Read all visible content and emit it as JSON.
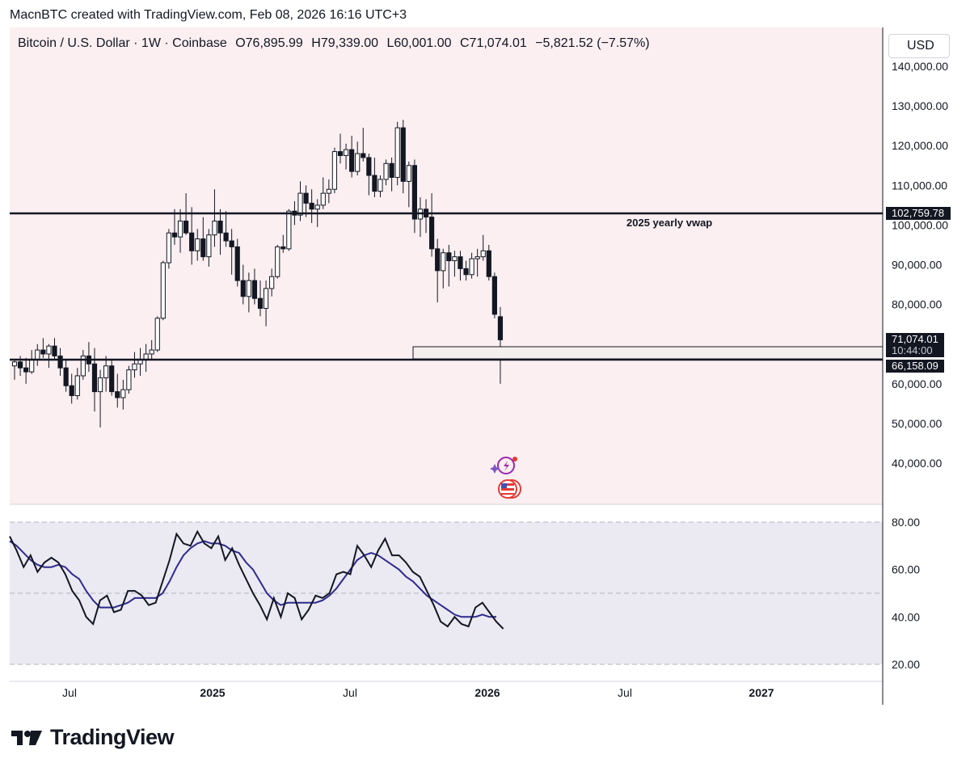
{
  "header": {
    "text": "MacnBTC created with TradingView.com, Feb 08, 2026 16:16 UTC+3"
  },
  "legend": {
    "symbol": "Bitcoin / U.S. Dollar · 1W · Coinbase",
    "open": "O76,895.99",
    "high": "H79,339.00",
    "low": "L60,001.00",
    "close": "C71,074.01",
    "change": "−5,821.52 (−7.57%)"
  },
  "currency_button": "USD",
  "footer": {
    "brand": "TradingView"
  },
  "price_axis": {
    "ticks": [
      "140,000.00",
      "130,000.00",
      "120,000.00",
      "110,000.00",
      "100,000.00",
      "90,000.00",
      "80,000.00",
      "70,000.00",
      "60,000.00",
      "50,000.00",
      "40,000.00"
    ]
  },
  "rsi_axis": {
    "ticks": [
      "80.00",
      "60.00",
      "40.00",
      "20.00"
    ]
  },
  "time_axis": {
    "labels": [
      "Jul",
      "2025",
      "Jul",
      "2026",
      "Jul",
      "2027"
    ]
  },
  "annotations": {
    "vwap_label": "2025 yearly vwap",
    "vwap_price": "102,759.78",
    "support_price": "66,158.09",
    "last_price": "71,074.01",
    "countdown": "10:44:00"
  },
  "colors": {
    "price_bg": "#fbeff1",
    "rsi_bg": "#ebe9f2",
    "rsi_line": "#131722",
    "rsi_ma": "#2e2a8f",
    "candle_up": "#ffffff",
    "candle_down": "#131722"
  },
  "chart_data": {
    "type": "candlestick",
    "title": "Bitcoin / U.S. Dollar · 1W · Coinbase",
    "ylim": [
      30000,
      145000
    ],
    "levels": [
      102759.78,
      66158.09
    ],
    "candles": [
      [
        64500,
        66000,
        61000,
        65500
      ],
      [
        65500,
        67000,
        62000,
        64000
      ],
      [
        64000,
        66500,
        60000,
        63000
      ],
      [
        63000,
        68500,
        62500,
        66000
      ],
      [
        66000,
        70000,
        64500,
        68500
      ],
      [
        68500,
        71500,
        66500,
        67500
      ],
      [
        67500,
        70000,
        64000,
        69500
      ],
      [
        69500,
        71500,
        66000,
        67000
      ],
      [
        67000,
        69000,
        62000,
        64000
      ],
      [
        64000,
        66000,
        58000,
        59500
      ],
      [
        59500,
        62500,
        55000,
        57000
      ],
      [
        57000,
        64000,
        56000,
        62000
      ],
      [
        62000,
        68500,
        61000,
        67000
      ],
      [
        67000,
        70500,
        63000,
        65000
      ],
      [
        65000,
        69000,
        53000,
        58000
      ],
      [
        58000,
        63500,
        49000,
        61500
      ],
      [
        61500,
        67000,
        58000,
        64500
      ],
      [
        64500,
        66000,
        57000,
        58000
      ],
      [
        58000,
        62500,
        54000,
        56500
      ],
      [
        56500,
        61000,
        53500,
        58500
      ],
      [
        58500,
        64500,
        57500,
        63500
      ],
      [
        63500,
        68000,
        61500,
        65000
      ],
      [
        65000,
        69000,
        62000,
        66000
      ],
      [
        66000,
        70000,
        63000,
        67500
      ],
      [
        67500,
        71000,
        66000,
        68500
      ],
      [
        68500,
        77000,
        68000,
        76500
      ],
      [
        76500,
        91000,
        76000,
        90500
      ],
      [
        90500,
        99000,
        89000,
        98000
      ],
      [
        98000,
        104000,
        95000,
        97000
      ],
      [
        97000,
        104000,
        93000,
        101000
      ],
      [
        101000,
        108000,
        97500,
        98000
      ],
      [
        98000,
        104500,
        90000,
        93500
      ],
      [
        93500,
        99000,
        91000,
        96500
      ],
      [
        96500,
        102000,
        91000,
        92000
      ],
      [
        92000,
        99000,
        89500,
        97500
      ],
      [
        97500,
        109000,
        94500,
        101000
      ],
      [
        101000,
        104000,
        92500,
        98000
      ],
      [
        98000,
        103500,
        94500,
        96000
      ],
      [
        96000,
        99000,
        87500,
        94500
      ],
      [
        94500,
        96500,
        84500,
        86000
      ],
      [
        86000,
        90000,
        80000,
        82000
      ],
      [
        82000,
        88000,
        78000,
        86000
      ],
      [
        86000,
        89000,
        80000,
        81500
      ],
      [
        81500,
        86000,
        77000,
        79000
      ],
      [
        79000,
        86000,
        74500,
        84000
      ],
      [
        84000,
        89000,
        82000,
        87000
      ],
      [
        87000,
        95000,
        86500,
        94500
      ],
      [
        94500,
        97500,
        93000,
        94000
      ],
      [
        94000,
        104000,
        93500,
        103500
      ],
      [
        103500,
        106000,
        100000,
        102500
      ],
      [
        102500,
        111000,
        101000,
        108000
      ],
      [
        108000,
        110000,
        102000,
        105500
      ],
      [
        105500,
        109000,
        100500,
        104000
      ],
      [
        104000,
        106500,
        99500,
        105000
      ],
      [
        105000,
        112000,
        104000,
        108000
      ],
      [
        108000,
        111500,
        105500,
        109000
      ],
      [
        109000,
        119500,
        108000,
        118500
      ],
      [
        118500,
        123000,
        115500,
        117500
      ],
      [
        117500,
        120500,
        114000,
        119000
      ],
      [
        119000,
        122500,
        112000,
        113500
      ],
      [
        113500,
        121000,
        112500,
        118000
      ],
      [
        118000,
        124500,
        116000,
        117000
      ],
      [
        117000,
        118000,
        107500,
        112500
      ],
      [
        112500,
        117000,
        107000,
        108500
      ],
      [
        108500,
        112500,
        107000,
        111500
      ],
      [
        111500,
        116500,
        110000,
        115500
      ],
      [
        115500,
        117000,
        108500,
        112000
      ],
      [
        112000,
        126000,
        110000,
        124500
      ],
      [
        124500,
        126500,
        108000,
        111000
      ],
      [
        111000,
        116000,
        104500,
        115000
      ],
      [
        115000,
        116500,
        98000,
        101500
      ],
      [
        101500,
        107000,
        97000,
        104000
      ],
      [
        104000,
        106500,
        98000,
        102000
      ],
      [
        102000,
        108000,
        92000,
        94000
      ],
      [
        94000,
        96500,
        80500,
        88500
      ],
      [
        88500,
        94000,
        84000,
        93000
      ],
      [
        93000,
        95000,
        84500,
        91000
      ],
      [
        91000,
        93500,
        87000,
        92000
      ],
      [
        92000,
        93500,
        86000,
        89000
      ],
      [
        89000,
        91000,
        86000,
        87500
      ],
      [
        87500,
        93000,
        86500,
        91500
      ],
      [
        91500,
        94000,
        87000,
        92000
      ],
      [
        92000,
        97500,
        91000,
        93500
      ],
      [
        93500,
        95000,
        86000,
        87000
      ],
      [
        87000,
        88000,
        76500,
        77500
      ],
      [
        76895.99,
        79339,
        60001,
        71074.01
      ]
    ],
    "rsi": [
      74,
      68,
      61,
      66,
      59,
      63,
      65,
      63,
      58,
      51,
      47,
      40,
      37,
      47,
      49,
      42,
      43,
      51,
      51,
      49,
      45,
      46,
      55,
      64,
      75,
      71,
      70,
      76,
      71,
      69,
      74,
      64,
      69,
      62,
      56,
      50,
      45,
      39,
      48,
      40,
      50,
      48,
      39,
      43,
      49,
      48,
      50,
      58,
      59,
      58,
      70,
      66,
      61,
      68,
      73,
      66,
      66,
      63,
      59,
      57,
      51,
      45,
      38,
      36,
      40,
      37,
      36,
      44,
      46,
      42,
      38,
      35
    ],
    "rsi_ma": [
      72,
      70,
      67,
      64,
      62,
      61,
      61,
      62,
      61,
      58,
      56,
      51,
      47,
      44,
      44,
      44,
      45,
      46,
      48,
      48,
      48,
      48,
      50,
      55,
      61,
      66,
      69,
      71,
      72,
      71,
      71,
      70,
      68,
      67,
      63,
      60,
      55,
      50,
      47,
      45,
      46,
      46,
      46,
      46,
      46,
      47,
      49,
      52,
      56,
      60,
      64,
      66,
      67,
      66,
      64,
      62,
      60,
      57,
      55,
      52,
      49,
      47,
      45,
      43,
      41,
      40,
      40,
      40,
      41,
      40,
      40
    ],
    "time_labels": [
      "Jul",
      "2025",
      "Jul",
      "2026",
      "Jul",
      "2027"
    ]
  }
}
